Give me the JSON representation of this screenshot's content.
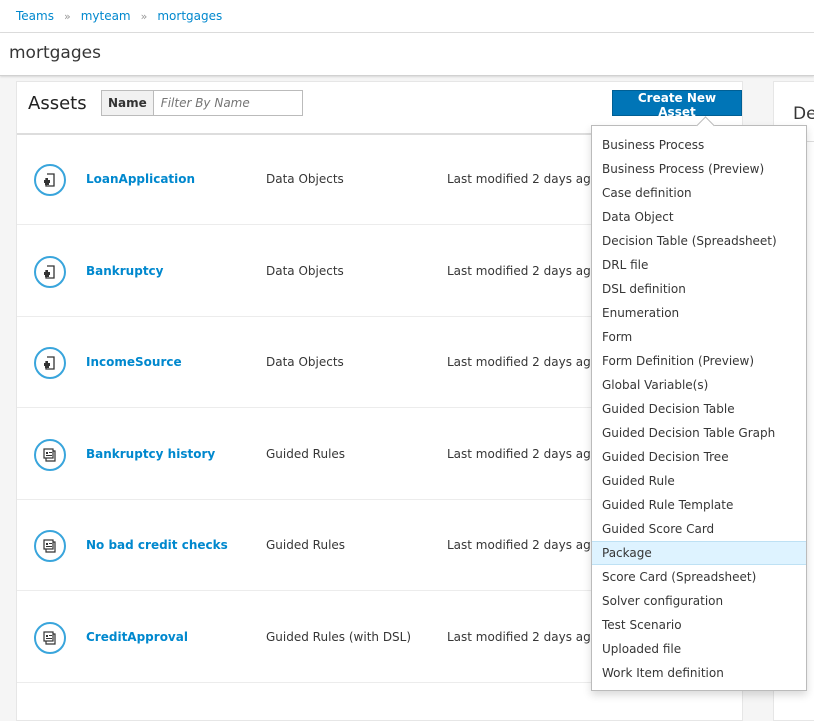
{
  "breadcrumb": [
    "Teams",
    "myteam",
    "mortgages"
  ],
  "page_title": "mortgages",
  "assets": {
    "title": "Assets",
    "filter_label": "Name",
    "filter_placeholder": "Filter By Name",
    "create_label": "Create New Asset",
    "rows": [
      {
        "name": "LoanApplication",
        "type": "Data Objects",
        "modified": "Last modified 2 days ago",
        "icon": "data-object-icon"
      },
      {
        "name": "Bankruptcy",
        "type": "Data Objects",
        "modified": "Last modified 2 days ago",
        "icon": "data-object-icon"
      },
      {
        "name": "IncomeSource",
        "type": "Data Objects",
        "modified": "Last modified 2 days ago",
        "icon": "data-object-icon"
      },
      {
        "name": "Bankruptcy history",
        "type": "Guided Rules",
        "modified": "Last modified 2 days ago",
        "icon": "guided-rule-icon"
      },
      {
        "name": "No bad credit checks",
        "type": "Guided Rules",
        "modified": "Last modified 2 days ago",
        "icon": "guided-rule-icon"
      },
      {
        "name": "CreditApproval",
        "type": "Guided Rules (with DSL)",
        "modified": "Last modified 2 days ago",
        "icon": "guided-rule-icon"
      }
    ]
  },
  "right_panel": {
    "title": "De"
  },
  "menu": {
    "highlighted": "Package",
    "items": [
      "Business Process",
      "Business Process (Preview)",
      "Case definition",
      "Data Object",
      "Decision Table (Spreadsheet)",
      "DRL file",
      "DSL definition",
      "Enumeration",
      "Form",
      "Form Definition (Preview)",
      "Global Variable(s)",
      "Guided Decision Table",
      "Guided Decision Table Graph",
      "Guided Decision Tree",
      "Guided Rule",
      "Guided Rule Template",
      "Guided Score Card",
      "Package",
      "Score Card (Spreadsheet)",
      "Solver configuration",
      "Test Scenario",
      "Uploaded file",
      "Work Item definition"
    ]
  }
}
